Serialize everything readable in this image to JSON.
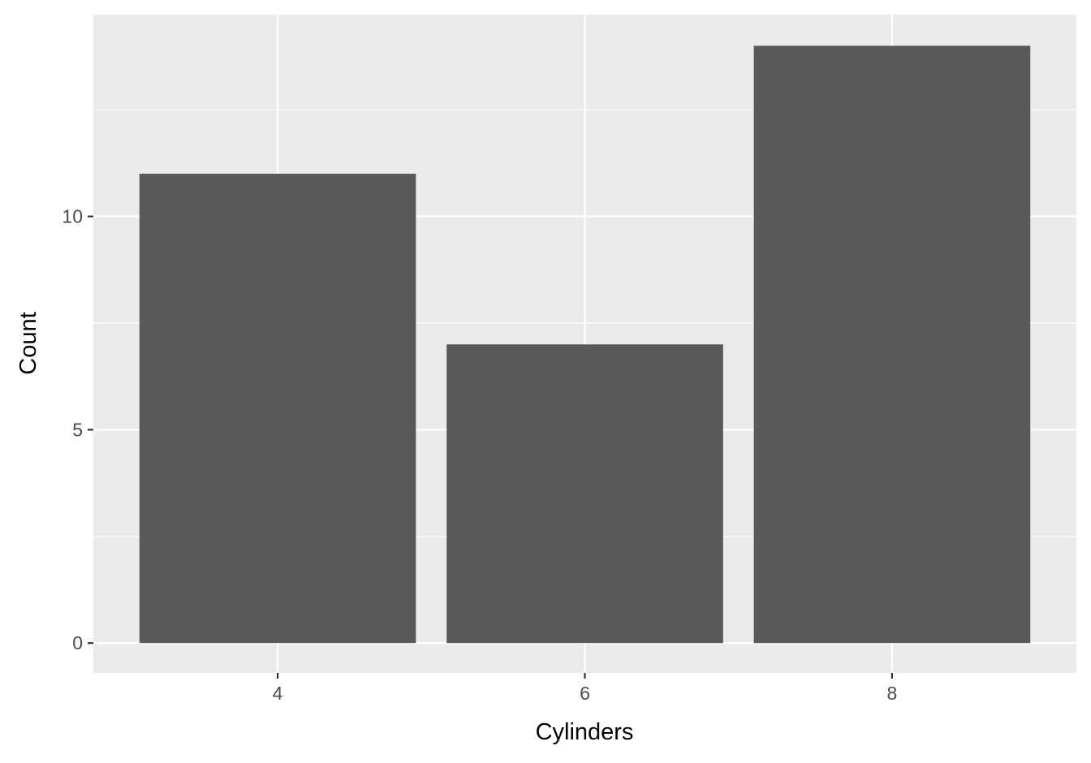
{
  "chart_data": {
    "type": "bar",
    "title": "",
    "xlabel": "Cylinders",
    "ylabel": "Count",
    "categories": [
      "4",
      "6",
      "8"
    ],
    "x": [
      4,
      6,
      8
    ],
    "values": [
      11,
      7,
      14
    ],
    "xlim": [
      2.8,
      9.2
    ],
    "ylim": [
      -0.7,
      14.73
    ],
    "x_ticks": [
      4,
      6,
      8
    ],
    "y_ticks": [
      0,
      5,
      10
    ],
    "y_minor_grid": [
      2.5,
      7.5,
      12.5
    ],
    "bar_width": 1.8,
    "grid": true,
    "legend": "none",
    "colors": {
      "bar": "#595959",
      "panel": "#ebebeb",
      "grid": "#ffffff"
    }
  }
}
